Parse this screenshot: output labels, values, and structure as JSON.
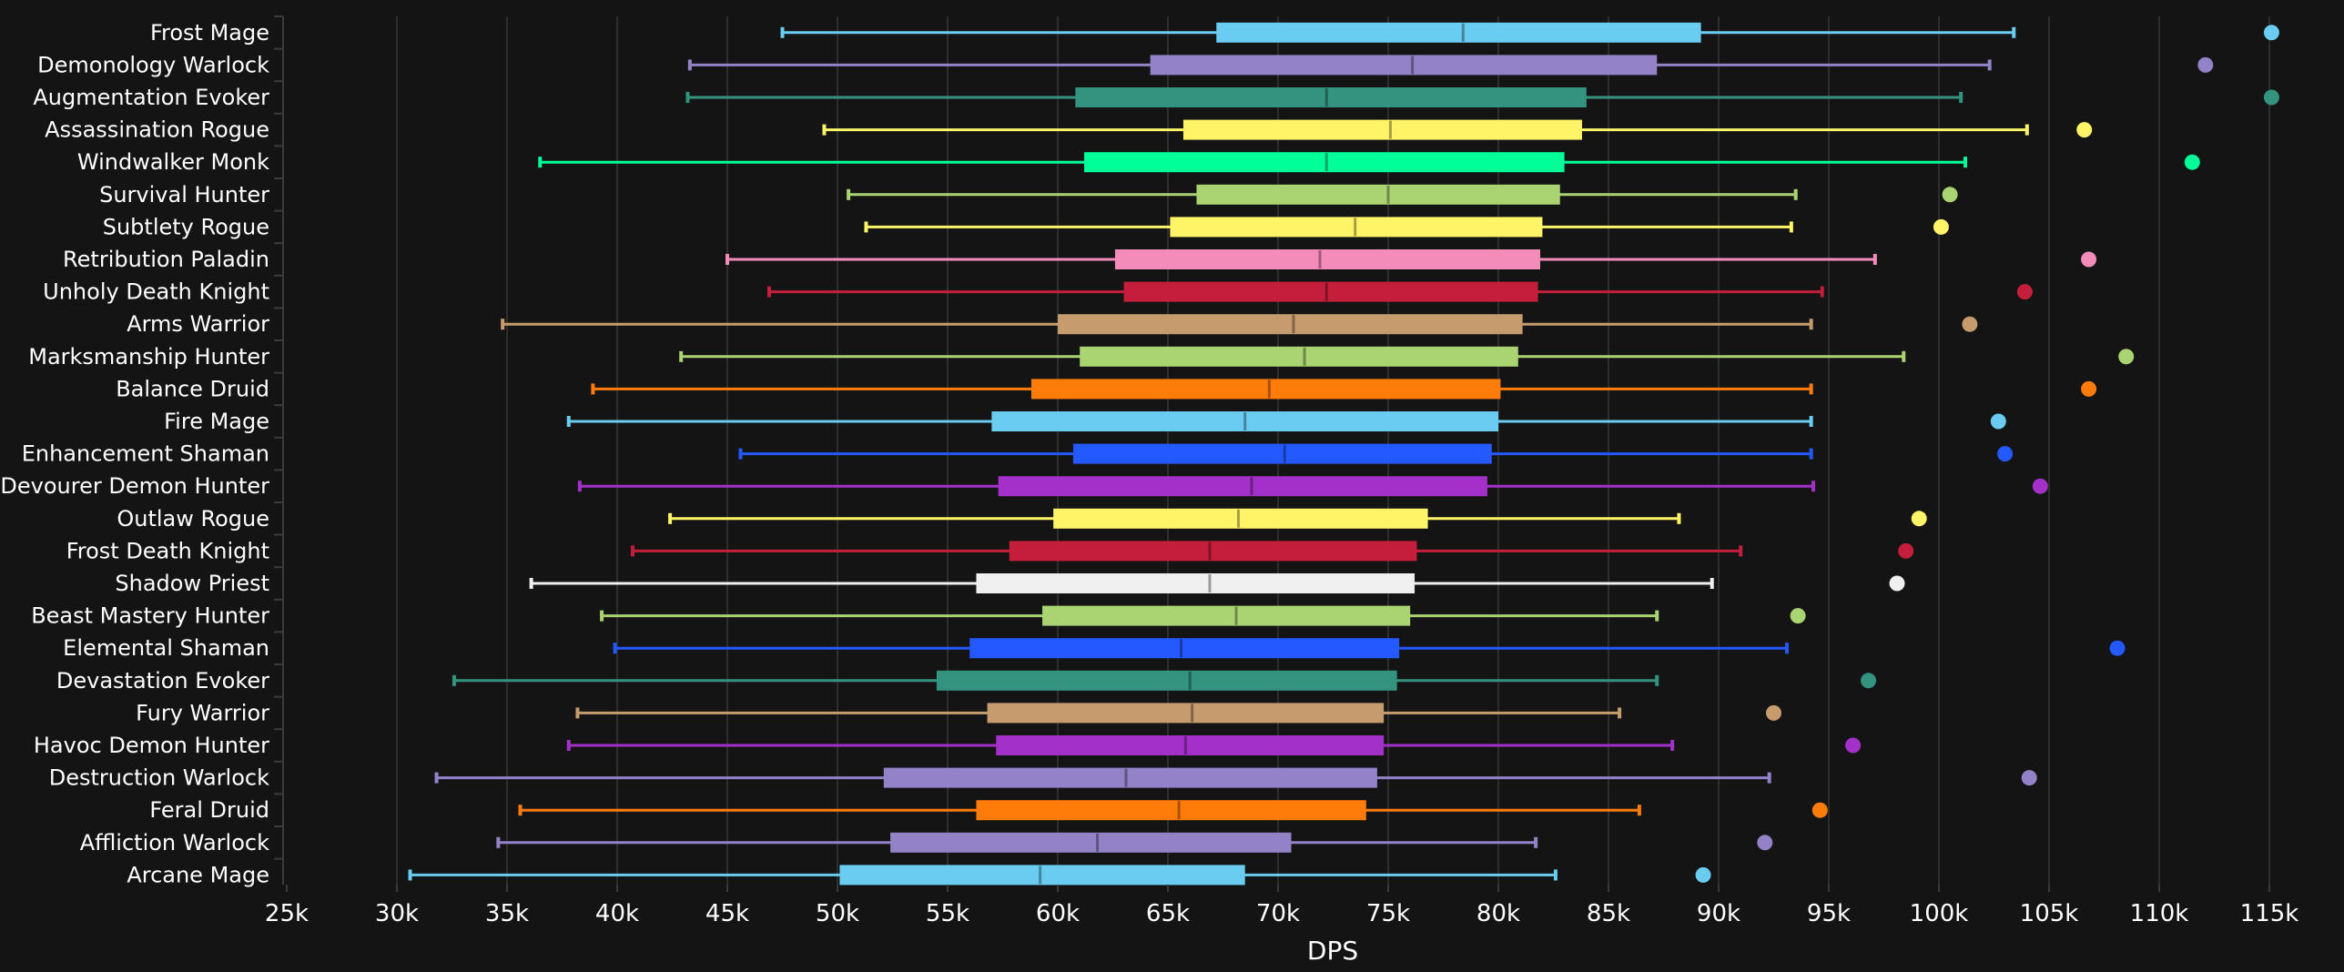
{
  "chart_data": {
    "type": "boxplot",
    "title": "",
    "xlabel": "DPS",
    "ylabel": "",
    "xlim": [
      25000,
      117000
    ],
    "xticks": [
      25000,
      30000,
      35000,
      40000,
      45000,
      50000,
      55000,
      60000,
      65000,
      70000,
      75000,
      80000,
      85000,
      90000,
      95000,
      100000,
      105000,
      110000,
      115000
    ],
    "xtick_labels": [
      "25k",
      "30k",
      "35k",
      "40k",
      "45k",
      "50k",
      "55k",
      "60k",
      "65k",
      "70k",
      "75k",
      "80k",
      "85k",
      "90k",
      "95k",
      "100k",
      "105k",
      "110k",
      "115k"
    ],
    "grid": true,
    "legend": "none",
    "series": [
      {
        "name": "Frost Mage",
        "color": "#69ccf0",
        "low": 47500,
        "q1": 67200,
        "median": 78400,
        "q3": 89200,
        "high": 103400,
        "max": 115100
      },
      {
        "name": "Demonology Warlock",
        "color": "#9482c9",
        "low": 43300,
        "q1": 64200,
        "median": 76100,
        "q3": 87200,
        "high": 102300,
        "max": 112100
      },
      {
        "name": "Augmentation Evoker",
        "color": "#33937f",
        "low": 43200,
        "q1": 60800,
        "median": 72200,
        "q3": 84000,
        "high": 101000,
        "max": 115100
      },
      {
        "name": "Assassination Rogue",
        "color": "#fff468",
        "low": 49400,
        "q1": 65700,
        "median": 75100,
        "q3": 83800,
        "high": 104000,
        "max": 106600
      },
      {
        "name": "Windwalker Monk",
        "color": "#00ff98",
        "low": 36500,
        "q1": 61200,
        "median": 72200,
        "q3": 83000,
        "high": 101200,
        "max": 111500
      },
      {
        "name": "Survival Hunter",
        "color": "#aad372",
        "low": 50500,
        "q1": 66300,
        "median": 75000,
        "q3": 82800,
        "high": 93500,
        "max": 100500
      },
      {
        "name": "Subtlety Rogue",
        "color": "#fff468",
        "low": 51300,
        "q1": 65100,
        "median": 73500,
        "q3": 82000,
        "high": 93300,
        "max": 100100
      },
      {
        "name": "Retribution Paladin",
        "color": "#f48cba",
        "low": 45000,
        "q1": 62600,
        "median": 71900,
        "q3": 81900,
        "high": 97100,
        "max": 106800
      },
      {
        "name": "Unholy Death Knight",
        "color": "#c41e3a",
        "low": 46900,
        "q1": 63000,
        "median": 72200,
        "q3": 81800,
        "high": 94700,
        "max": 103900
      },
      {
        "name": "Arms Warrior",
        "color": "#c69b6d",
        "low": 34800,
        "q1": 60000,
        "median": 70700,
        "q3": 81100,
        "high": 94200,
        "max": 101400
      },
      {
        "name": "Marksmanship Hunter",
        "color": "#aad372",
        "low": 42900,
        "q1": 61000,
        "median": 71200,
        "q3": 80900,
        "high": 98400,
        "max": 108500
      },
      {
        "name": "Balance Druid",
        "color": "#ff7c0a",
        "low": 38900,
        "q1": 58800,
        "median": 69600,
        "q3": 80100,
        "high": 94200,
        "max": 106800
      },
      {
        "name": "Fire Mage",
        "color": "#69ccf0",
        "low": 37800,
        "q1": 57000,
        "median": 68500,
        "q3": 80000,
        "high": 94200,
        "max": 102700
      },
      {
        "name": "Enhancement Shaman",
        "color": "#2459ff",
        "low": 45600,
        "q1": 60700,
        "median": 70300,
        "q3": 79700,
        "high": 94200,
        "max": 103000
      },
      {
        "name": "Devourer Demon Hunter",
        "color": "#a330c9",
        "low": 38300,
        "q1": 57300,
        "median": 68800,
        "q3": 79500,
        "high": 94300,
        "max": 104600
      },
      {
        "name": "Outlaw Rogue",
        "color": "#fff468",
        "low": 42400,
        "q1": 59800,
        "median": 68200,
        "q3": 76800,
        "high": 88200,
        "max": 99100
      },
      {
        "name": "Frost Death Knight",
        "color": "#c41e3a",
        "low": 40700,
        "q1": 57800,
        "median": 66900,
        "q3": 76300,
        "high": 91000,
        "max": 98500
      },
      {
        "name": "Shadow Priest",
        "color": "#f0f0f0",
        "low": 36100,
        "q1": 56300,
        "median": 66900,
        "q3": 76200,
        "high": 89700,
        "max": 98100
      },
      {
        "name": "Beast Mastery Hunter",
        "color": "#aad372",
        "low": 39300,
        "q1": 59300,
        "median": 68100,
        "q3": 76000,
        "high": 87200,
        "max": 93600
      },
      {
        "name": "Elemental Shaman",
        "color": "#2459ff",
        "low": 39900,
        "q1": 56000,
        "median": 65600,
        "q3": 75500,
        "high": 93100,
        "max": 108100
      },
      {
        "name": "Devastation Evoker",
        "color": "#33937f",
        "low": 32600,
        "q1": 54500,
        "median": 66000,
        "q3": 75400,
        "high": 87200,
        "max": 96800
      },
      {
        "name": "Fury Warrior",
        "color": "#c69b6d",
        "low": 38200,
        "q1": 56800,
        "median": 66100,
        "q3": 74800,
        "high": 85500,
        "max": 92500
      },
      {
        "name": "Havoc Demon Hunter",
        "color": "#a330c9",
        "low": 37800,
        "q1": 57200,
        "median": 65800,
        "q3": 74800,
        "high": 87900,
        "max": 96100
      },
      {
        "name": "Destruction Warlock",
        "color": "#9482c9",
        "low": 31800,
        "q1": 52100,
        "median": 63100,
        "q3": 74500,
        "high": 92300,
        "max": 104100
      },
      {
        "name": "Feral Druid",
        "color": "#ff7c0a",
        "low": 35600,
        "q1": 56300,
        "median": 65500,
        "q3": 74000,
        "high": 86400,
        "max": 94600
      },
      {
        "name": "Affliction Warlock",
        "color": "#9482c9",
        "low": 34600,
        "q1": 52400,
        "median": 61800,
        "q3": 70600,
        "high": 81700,
        "max": 92100
      },
      {
        "name": "Arcane Mage",
        "color": "#69ccf0",
        "low": 30600,
        "q1": 50100,
        "median": 59200,
        "q3": 68500,
        "high": 82600,
        "max": 89300
      }
    ]
  }
}
